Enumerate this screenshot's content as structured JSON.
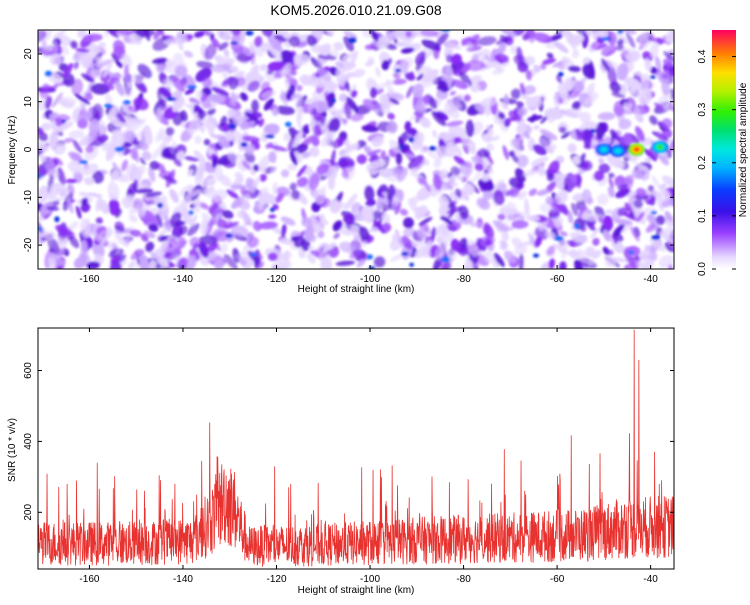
{
  "title": "KOM5.2026.010.21.09.G08",
  "chart_data": [
    {
      "type": "heatmap",
      "xlabel": "Height of straight line (km)",
      "ylabel": "Frequency (Hz)",
      "xlim": [
        -171,
        -35
      ],
      "ylim": [
        -25,
        25
      ],
      "xticks": [
        -160,
        -140,
        -120,
        -100,
        -80,
        -60,
        -40
      ],
      "yticks": [
        -20,
        -10,
        0,
        10,
        20
      ],
      "colorbar": {
        "label": "Normalized spectral amplitude",
        "range": [
          0.0,
          0.45
        ],
        "ticks": [
          0.0,
          0.1,
          0.2,
          0.3,
          0.4
        ]
      },
      "background_level": 0.03,
      "features": [
        {
          "x": -43,
          "y": 0,
          "value": 0.45
        },
        {
          "x": -38,
          "y": 0.5,
          "value": 0.25
        },
        {
          "x": -47,
          "y": -0.3,
          "value": 0.12
        },
        {
          "x": -50,
          "y": 0,
          "value": 0.12
        }
      ]
    },
    {
      "type": "line",
      "xlabel": "Height of straight line (km)",
      "ylabel": "SNR (10 * v/v)",
      "xlim": [
        -171,
        -35
      ],
      "ylim": [
        40,
        720
      ],
      "xticks": [
        -160,
        -140,
        -120,
        -100,
        -80,
        -60,
        -40
      ],
      "yticks": [
        200,
        400,
        600
      ],
      "series": [
        {
          "color": "#e8322f",
          "profile": [
            {
              "x": -171,
              "y": 140
            },
            {
              "x": -150,
              "y": 140
            },
            {
              "x": -138,
              "y": 150
            },
            {
              "x": -134,
              "y": 220
            },
            {
              "x": -131,
              "y": 300
            },
            {
              "x": -129,
              "y": 260
            },
            {
              "x": -126,
              "y": 130
            },
            {
              "x": -110,
              "y": 135
            },
            {
              "x": -90,
              "y": 150
            },
            {
              "x": -70,
              "y": 160
            },
            {
              "x": -55,
              "y": 170
            },
            {
              "x": -45,
              "y": 195
            },
            {
              "x": -35,
              "y": 200
            }
          ],
          "peaks": [
            {
              "x": -43.5,
              "y": 715
            },
            {
              "x": -42.5,
              "y": 630
            }
          ]
        }
      ]
    }
  ]
}
